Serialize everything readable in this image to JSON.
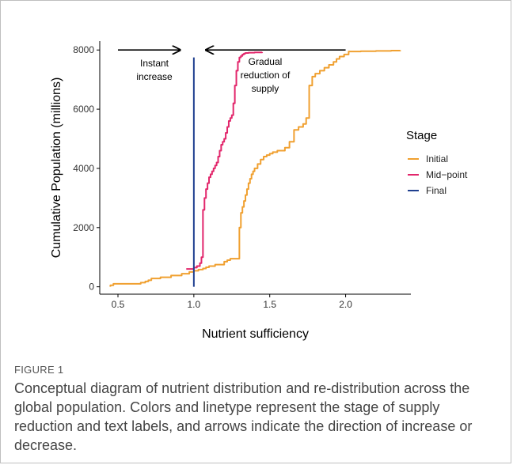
{
  "figure": {
    "label": "FIGURE 1",
    "caption": "Conceptual diagram of nutrient distribution and re-distribution across the global population. Colors and linetype represent the stage of supply reduction and text labels, and arrows indicate the direction of increase or decrease."
  },
  "chart_data": {
    "type": "line",
    "xlabel": "Nutrient sufficiency",
    "ylabel": "Cumulative Population (millions)",
    "xlim": [
      0.38,
      2.43
    ],
    "ylim": [
      -250,
      8300
    ],
    "xticks": [
      0.5,
      1.0,
      1.5,
      2.0
    ],
    "xtick_labels": [
      "0.5",
      "1.0",
      "1.5",
      "2.0"
    ],
    "yticks": [
      0,
      2000,
      4000,
      6000,
      8000
    ],
    "ytick_labels": [
      "0",
      "2000",
      "4000",
      "6000",
      "8000"
    ],
    "grid": false,
    "legend": {
      "title": "Stage",
      "position": "right",
      "entries": [
        "Initial",
        "Mid−point",
        "Final"
      ]
    },
    "series": [
      {
        "name": "Initial",
        "color": "#f0a030",
        "x": [
          0.45,
          0.45,
          0.47,
          0.47,
          0.65,
          0.68,
          0.7,
          0.72,
          0.78,
          0.85,
          0.92,
          0.97,
          1.0,
          1.03,
          1.06,
          1.08,
          1.1,
          1.14,
          1.2,
          1.22,
          1.24,
          1.3,
          1.3,
          1.31,
          1.32,
          1.33,
          1.34,
          1.35,
          1.36,
          1.37,
          1.38,
          1.39,
          1.4,
          1.42,
          1.44,
          1.46,
          1.48,
          1.5,
          1.52,
          1.55,
          1.6,
          1.63,
          1.66,
          1.69,
          1.72,
          1.74,
          1.76,
          1.76,
          1.78,
          1.8,
          1.83,
          1.86,
          1.89,
          1.92,
          1.94,
          1.96,
          1.99,
          2.02,
          2.1,
          2.2,
          2.3,
          2.36
        ],
        "y": [
          0,
          50,
          50,
          100,
          140,
          180,
          220,
          280,
          320,
          380,
          440,
          500,
          540,
          580,
          620,
          660,
          700,
          750,
          850,
          900,
          950,
          1000,
          2000,
          2500,
          2700,
          2900,
          3100,
          3300,
          3500,
          3650,
          3800,
          3900,
          4000,
          4150,
          4300,
          4400,
          4450,
          4500,
          4550,
          4600,
          4700,
          4900,
          5300,
          5400,
          5500,
          5700,
          5800,
          6800,
          7100,
          7200,
          7300,
          7400,
          7500,
          7600,
          7700,
          7780,
          7850,
          7950,
          7960,
          7970,
          7980,
          7990
        ]
      },
      {
        "name": "Mid−point",
        "color": "#e2266b",
        "x": [
          0.95,
          1.0,
          1.02,
          1.04,
          1.05,
          1.06,
          1.07,
          1.08,
          1.09,
          1.1,
          1.11,
          1.12,
          1.13,
          1.14,
          1.15,
          1.16,
          1.17,
          1.18,
          1.19,
          1.2,
          1.21,
          1.22,
          1.23,
          1.24,
          1.25,
          1.26,
          1.27,
          1.28,
          1.29,
          1.3,
          1.31,
          1.32,
          1.33,
          1.34,
          1.36,
          1.4,
          1.45
        ],
        "y": [
          600,
          650,
          700,
          800,
          1000,
          2600,
          3000,
          3300,
          3500,
          3700,
          3800,
          3900,
          4000,
          4100,
          4200,
          4400,
          4600,
          4800,
          4900,
          5000,
          5200,
          5400,
          5600,
          5700,
          5800,
          6200,
          6800,
          7300,
          7600,
          7750,
          7800,
          7850,
          7880,
          7900,
          7910,
          7920,
          7930
        ]
      },
      {
        "name": "Final",
        "color": "#1f3f8f",
        "x": [
          1.0,
          1.0
        ],
        "y": [
          0,
          7750
        ]
      }
    ],
    "annotations": [
      {
        "text": "Instant increase",
        "lines": [
          "Instant",
          "increase"
        ],
        "x": 0.74,
        "y": 7450
      },
      {
        "text": "Gradual reduction of supply",
        "lines": [
          "Gradual",
          "reduction of",
          "supply"
        ],
        "x": 1.47,
        "y": 7500
      }
    ],
    "arrows": [
      {
        "from": [
          0.5,
          8000
        ],
        "to": [
          0.91,
          8000
        ],
        "direction": "right"
      },
      {
        "from": [
          2.0,
          8000
        ],
        "to": [
          1.08,
          8000
        ],
        "direction": "left"
      }
    ]
  }
}
